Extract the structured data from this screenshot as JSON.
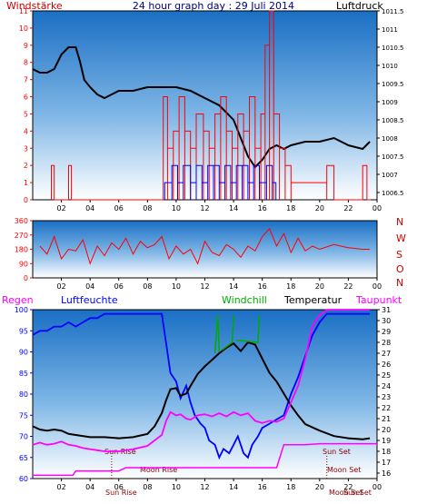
{
  "header": {
    "title": "24 hour graph day : 29 Juli 2014",
    "left_label": "Windstärke",
    "right_label": "Luftdruck"
  },
  "colors": {
    "frame": "#ffffff",
    "panel_top": "#1a73c9",
    "panel_bottom": "#ffffff",
    "red": "#ff0000",
    "blue": "#0000ff",
    "green": "#00aa00",
    "black": "#000000",
    "magenta": "#ff00ff",
    "darkred": "#cc0000",
    "title_blue": "#000080"
  },
  "x_axis": {
    "tick_labels": [
      "02",
      "04",
      "06",
      "08",
      "10",
      "12",
      "14",
      "16",
      "18",
      "20",
      "22",
      "00"
    ]
  },
  "chart_data": [
    {
      "type": "line",
      "title": "24 hour graph day : 29 Juli 2014",
      "left_axis": {
        "label": "Windstärke",
        "ticks": [
          "0",
          "1",
          "2",
          "3",
          "4",
          "5",
          "6",
          "7",
          "8",
          "9",
          "10",
          "11"
        ],
        "ylim": [
          0,
          11
        ]
      },
      "right_axis": {
        "label": "Luftdruck",
        "ticks": [
          "1006.5",
          "1007",
          "1007.5",
          "1008",
          "1008.5",
          "1009",
          "1009.5",
          "1010",
          "1010.5",
          "1011",
          "1011.5"
        ],
        "ylim": [
          1006.3,
          1011.5
        ]
      },
      "xlim": [
        0,
        24
      ],
      "series": [
        {
          "name": "Luftdruck",
          "axis": "right",
          "color": "black",
          "x": [
            0,
            0.5,
            1,
            1.5,
            2,
            2.5,
            3,
            3.3,
            3.6,
            4,
            4.5,
            5,
            5.5,
            6,
            6.5,
            7,
            8,
            9,
            10,
            11,
            12,
            13,
            14,
            14.5,
            15,
            15.5,
            16,
            16.5,
            17,
            17.5,
            18,
            19,
            20,
            21,
            22,
            23,
            23.5
          ],
          "y": [
            1009.9,
            1009.8,
            1009.8,
            1009.9,
            1010.3,
            1010.5,
            1010.5,
            1010.1,
            1009.6,
            1009.4,
            1009.2,
            1009.1,
            1009.2,
            1009.3,
            1009.3,
            1009.3,
            1009.4,
            1009.4,
            1009.4,
            1009.3,
            1009.1,
            1008.9,
            1008.5,
            1008.0,
            1007.5,
            1007.2,
            1007.4,
            1007.7,
            1007.8,
            1007.7,
            1007.8,
            1007.9,
            1007.9,
            1008.0,
            1007.8,
            1007.7,
            1007.9
          ]
        },
        {
          "name": "Wind",
          "axis": "left",
          "color": "red",
          "x": [
            1.3,
            1.5,
            2.5,
            2.7,
            9.1,
            9.4,
            9.8,
            10.2,
            10.6,
            11.0,
            11.4,
            11.9,
            12.3,
            12.7,
            13.1,
            13.5,
            13.9,
            14.3,
            14.7,
            15.1,
            15.5,
            15.9,
            16.2,
            16.5,
            16.8,
            17.2,
            17.6,
            18.0,
            20.5,
            21.0,
            23.0,
            23.3
          ],
          "y": [
            2,
            0,
            2,
            0,
            6,
            3,
            4,
            6,
            4,
            3,
            5,
            4,
            3,
            5,
            6,
            4,
            3,
            5,
            4,
            6,
            3,
            5,
            9,
            11,
            5,
            3,
            2,
            1,
            2,
            0,
            2,
            0
          ]
        },
        {
          "name": "Böen",
          "axis": "left",
          "color": "blue",
          "x": [
            9.2,
            9.7,
            10.1,
            10.5,
            11.0,
            11.4,
            11.8,
            12.2,
            12.6,
            13.0,
            13.4,
            13.8,
            14.2,
            14.6,
            15.0,
            15.4,
            15.8,
            16.3,
            16.7
          ],
          "y": [
            1,
            2,
            1,
            2,
            1,
            2,
            1,
            2,
            2,
            1,
            2,
            1,
            2,
            2,
            1,
            2,
            1,
            2,
            1
          ]
        }
      ]
    },
    {
      "type": "line",
      "title": "",
      "left_axis": {
        "label": "",
        "ticks": [
          "0",
          "90",
          "180",
          "270",
          "360"
        ],
        "ylim": [
          0,
          360
        ]
      },
      "right_axis": {
        "label": "",
        "ticks": [
          "N",
          "W",
          "S",
          "O",
          "N"
        ]
      },
      "xlim": [
        0,
        24
      ],
      "series": [
        {
          "name": "Windrichtung",
          "color": "red",
          "x": [
            0.5,
            1,
            1.5,
            2,
            2.5,
            3,
            3.5,
            4,
            4.5,
            5,
            5.5,
            6,
            6.5,
            7,
            7.5,
            8,
            8.5,
            9,
            9.5,
            10,
            10.5,
            11,
            11.5,
            12,
            12.5,
            13,
            13.5,
            14,
            14.5,
            15,
            15.5,
            16,
            16.5,
            17,
            17.5,
            18,
            18.5,
            19,
            19.5,
            20,
            21,
            22,
            23,
            23.5
          ],
          "y": [
            200,
            150,
            260,
            120,
            180,
            170,
            240,
            90,
            200,
            140,
            220,
            180,
            250,
            150,
            230,
            190,
            210,
            260,
            120,
            200,
            150,
            180,
            90,
            230,
            160,
            140,
            210,
            180,
            130,
            200,
            170,
            260,
            310,
            200,
            280,
            160,
            250,
            170,
            200,
            180,
            210,
            190,
            180,
            180
          ]
        }
      ]
    },
    {
      "type": "line",
      "title": "",
      "legend": [
        "Regen",
        "Luftfeuchte",
        "Windchill",
        "Temperatur",
        "Taupunkt"
      ],
      "left_axis": {
        "label": "Luftfeuchte",
        "ticks": [
          "60",
          "65",
          "70",
          "75",
          "80",
          "85",
          "90",
          "95",
          "100"
        ],
        "ylim": [
          60,
          100
        ]
      },
      "right_axis": {
        "label": "Temperatur",
        "ticks": [
          "16",
          "17",
          "18",
          "19",
          "20",
          "21",
          "22",
          "23",
          "24",
          "25",
          "26",
          "27",
          "28",
          "29",
          "30",
          "31"
        ],
        "ylim": [
          15.5,
          31
        ]
      },
      "annotations": [
        "Sun Rise",
        "Moon Rise",
        "Sun Set",
        "Moon Set",
        "Sun Rise",
        "Sun Set",
        "Moon Set"
      ],
      "xlim": [
        0,
        24
      ],
      "series": [
        {
          "name": "Luftfeuchte",
          "axis": "left",
          "color": "blue",
          "x": [
            0,
            0.5,
            1,
            1.5,
            2,
            2.5,
            3,
            3.5,
            4,
            4.5,
            5,
            6,
            7,
            8,
            9,
            9.3,
            9.6,
            10,
            10.3,
            10.7,
            11,
            11.3,
            11.7,
            12,
            12.3,
            12.7,
            13,
            13.3,
            13.7,
            14,
            14.3,
            14.7,
            15,
            15.3,
            15.7,
            16,
            16.5,
            17,
            17.5,
            18,
            18.5,
            19,
            19.5,
            20,
            20.5,
            21,
            22,
            23,
            23.5
          ],
          "y": [
            94,
            95,
            95,
            96,
            96,
            97,
            96,
            97,
            98,
            98,
            99,
            99,
            99,
            99,
            99,
            92,
            85,
            83,
            79,
            82,
            78,
            75,
            73,
            72,
            69,
            68,
            65,
            67,
            66,
            68,
            70,
            66,
            65,
            68,
            70,
            72,
            73,
            74,
            75,
            80,
            84,
            89,
            94,
            97,
            99,
            99,
            99,
            99,
            99
          ]
        },
        {
          "name": "Temperatur",
          "axis": "right",
          "color": "black",
          "x": [
            0,
            0.5,
            1,
            1.5,
            2,
            2.5,
            3,
            4,
            5,
            6,
            7,
            8,
            8.5,
            9,
            9.3,
            9.6,
            10,
            10.3,
            10.7,
            11,
            11.5,
            12,
            12.5,
            13,
            13.5,
            14,
            14.5,
            15,
            15.5,
            16,
            16.5,
            17,
            17.5,
            18,
            18.5,
            19,
            20,
            21,
            22,
            23,
            23.5
          ],
          "y": [
            20.3,
            20.0,
            19.9,
            20.0,
            19.9,
            19.6,
            19.5,
            19.3,
            19.3,
            19.2,
            19.3,
            19.6,
            20.3,
            21.5,
            22.7,
            23.7,
            23.8,
            23.1,
            23.3,
            24.0,
            25.1,
            25.8,
            26.4,
            27.0,
            27.5,
            27.9,
            27.2,
            28.0,
            27.8,
            26.5,
            25.2,
            24.4,
            23.3,
            22.2,
            21.3,
            20.5,
            19.9,
            19.4,
            19.2,
            19.1,
            19.2
          ]
        },
        {
          "name": "Windchill",
          "axis": "right",
          "color": "green",
          "x": [
            12.7,
            12.9,
            13.0,
            13.2,
            13.9,
            14.0,
            14.2,
            15.7,
            15.8,
            16.0
          ],
          "y": [
            27.0,
            30.5,
            27.1,
            27.3,
            28.0,
            30.5,
            28.2,
            28.0,
            30.5,
            28.1
          ]
        },
        {
          "name": "Taupunkt",
          "axis": "right",
          "color": "magenta",
          "x": [
            0,
            0.5,
            1,
            1.5,
            2,
            2.5,
            3,
            3.5,
            4,
            4.5,
            5,
            6,
            7,
            8,
            9,
            9.3,
            9.6,
            10,
            10.3,
            10.7,
            11,
            11.5,
            12,
            12.5,
            13,
            13.5,
            14,
            14.5,
            15,
            15.5,
            16,
            16.5,
            17,
            17.5,
            18,
            18.5,
            19,
            19.5,
            20,
            20.5,
            21,
            22,
            23,
            23.5
          ],
          "y": [
            18.6,
            18.8,
            18.6,
            18.7,
            18.9,
            18.6,
            18.5,
            18.3,
            18.2,
            18.1,
            18.0,
            18.0,
            18.2,
            18.5,
            19.5,
            20.8,
            21.6,
            21.3,
            21.4,
            21.0,
            20.9,
            21.3,
            21.4,
            21.2,
            21.5,
            21.2,
            21.6,
            21.3,
            21.5,
            20.8,
            20.6,
            20.8,
            20.7,
            21.0,
            22.5,
            24.0,
            26.5,
            29.5,
            30.5,
            31.0,
            31.0,
            31.0,
            31.0,
            31.0
          ]
        },
        {
          "name": "Regen",
          "axis": "right",
          "color": "magenta",
          "x": [
            0,
            2.8,
            3.0,
            3.5,
            6.0,
            6.5,
            7.0,
            17.0,
            17.5,
            19.0,
            20.0,
            24.0
          ],
          "y": [
            15.8,
            15.8,
            16.2,
            16.2,
            16.2,
            16.5,
            16.5,
            16.5,
            18.6,
            18.6,
            18.7,
            18.7
          ]
        }
      ]
    }
  ],
  "panel2_right_letters": [
    "N",
    "W",
    "S",
    "O",
    "N"
  ],
  "panel3": {
    "legend": {
      "regen": "Regen",
      "luftfeuchte": "Luftfeuchte",
      "windchill": "Windchill",
      "temperatur": "Temperatur",
      "taupunkt": "Taupunkt"
    },
    "annotations": {
      "sun_rise": "Sun Rise",
      "moon_rise": "Moon Rise",
      "sun_set": "Sun Set",
      "moon_set": "Moon Set",
      "sun_rise_axis": "Sun Rise",
      "sun_set_axis": "Sun Set",
      "moon_set_axis": "Moon Set"
    }
  }
}
